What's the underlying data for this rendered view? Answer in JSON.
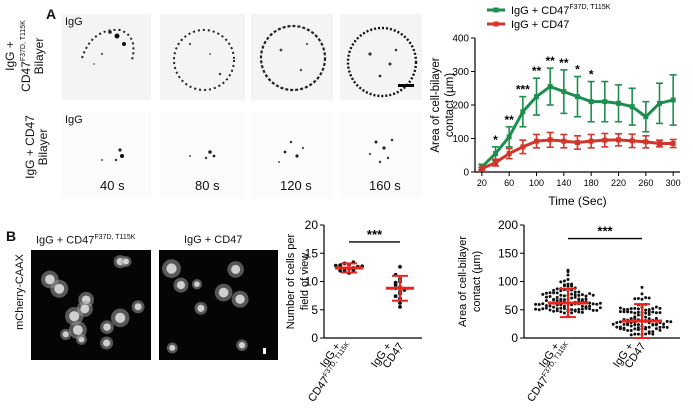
{
  "panelA": {
    "letter": "A",
    "row1_label_a": "IgG +",
    "row1_label_b": "CD47",
    "row1_label_sup": "F37D, T115K",
    "row1_label_c": "Bilayer",
    "row2_label_a": "IgG + CD47",
    "row2_label_b": "Bilayer",
    "tile_label": "IgG",
    "times": [
      "40 s",
      "80 s",
      "120 s",
      "160 s"
    ]
  },
  "panelB": {
    "letter": "B",
    "image1_title": "IgG + CD47",
    "image1_sup": "F37D, T115K",
    "image2_title": "IgG + CD47",
    "side_label": "mCherry-CAAX"
  },
  "colors": {
    "green": "#1e8e4e",
    "red": "#d2362b",
    "errRed": "#e8241c"
  },
  "chart_data": [
    {
      "type": "line",
      "title": "",
      "ylabel_line1": "Area of cell-bilayer",
      "ylabel_line2": "contact (µm)",
      "xlabel": "Time (Sec)",
      "xlim": [
        10,
        310
      ],
      "ylim": [
        0,
        400
      ],
      "xticks": [
        20,
        60,
        100,
        140,
        180,
        220,
        260,
        300
      ],
      "yticks": [
        0,
        100,
        200,
        300,
        400
      ],
      "x": [
        20,
        40,
        60,
        80,
        100,
        120,
        140,
        160,
        180,
        200,
        220,
        240,
        260,
        280,
        300
      ],
      "series": [
        {
          "name": "IgG + CD47",
          "name_sup": "F37D, T115K",
          "color": "#1e8e4e",
          "values": [
            15,
            55,
            105,
            180,
            225,
            255,
            240,
            225,
            210,
            210,
            205,
            195,
            165,
            205,
            215
          ],
          "errors": [
            8,
            20,
            30,
            45,
            55,
            55,
            65,
            60,
            60,
            60,
            55,
            55,
            45,
            60,
            75
          ]
        },
        {
          "name": "IgG + CD47",
          "name_sup": "",
          "color": "#d2362b",
          "values": [
            10,
            28,
            55,
            75,
            92,
            96,
            92,
            88,
            92,
            95,
            96,
            93,
            90,
            85,
            85
          ],
          "errors": [
            4,
            10,
            15,
            20,
            20,
            22,
            20,
            20,
            20,
            20,
            18,
            20,
            18,
            10,
            12
          ]
        }
      ],
      "significance": [
        {
          "x": 40,
          "label": "*"
        },
        {
          "x": 60,
          "label": "**"
        },
        {
          "x": 80,
          "label": "***"
        },
        {
          "x": 100,
          "label": "**"
        },
        {
          "x": 120,
          "label": "**"
        },
        {
          "x": 140,
          "label": "**"
        },
        {
          "x": 160,
          "label": "*"
        },
        {
          "x": 180,
          "label": "*"
        }
      ]
    },
    {
      "type": "scatter",
      "ylabel_line1": "Number of cells per",
      "ylabel_line2": "field of view",
      "ylim": [
        0,
        20
      ],
      "yticks": [
        0,
        5,
        10,
        15,
        20
      ],
      "categories": [
        {
          "l1": "IgG +",
          "l2": "CD47",
          "sup": "F37D, T115K"
        },
        {
          "l1": "IgG +",
          "l2": "CD47",
          "sup": ""
        }
      ],
      "groups": [
        {
          "mean": 12.4,
          "sd": 0.8,
          "points": [
            11.5,
            11.8,
            12.0,
            12.2,
            12.3,
            12.4,
            12.5,
            12.6,
            12.8,
            13.0,
            13.2,
            13.4,
            12.9,
            11.9,
            12.7
          ]
        },
        {
          "mean": 8.8,
          "sd": 2.2,
          "points": [
            5.5,
            6.2,
            7.0,
            7.8,
            8.2,
            8.8,
            9.0,
            9.4,
            10.0,
            10.5,
            11.2,
            12.6,
            8.5,
            9.8,
            7.4
          ]
        }
      ],
      "significance": "***"
    },
    {
      "type": "scatter",
      "ylabel_line1": "Area of cell-bilayer",
      "ylabel_line2": "contact (µm)",
      "ylim": [
        0,
        200
      ],
      "yticks": [
        0,
        50,
        100,
        150,
        200
      ],
      "categories": [
        {
          "l1": "IgG +",
          "l2": "CD47",
          "sup": "F37D, T115K"
        },
        {
          "l1": "IgG +",
          "l2": "CD47",
          "sup": ""
        }
      ],
      "groups": [
        {
          "mean": 62,
          "sd": 25,
          "n": 110
        },
        {
          "mean": 30,
          "sd": 30,
          "n": 100
        }
      ],
      "significance": "***"
    }
  ]
}
